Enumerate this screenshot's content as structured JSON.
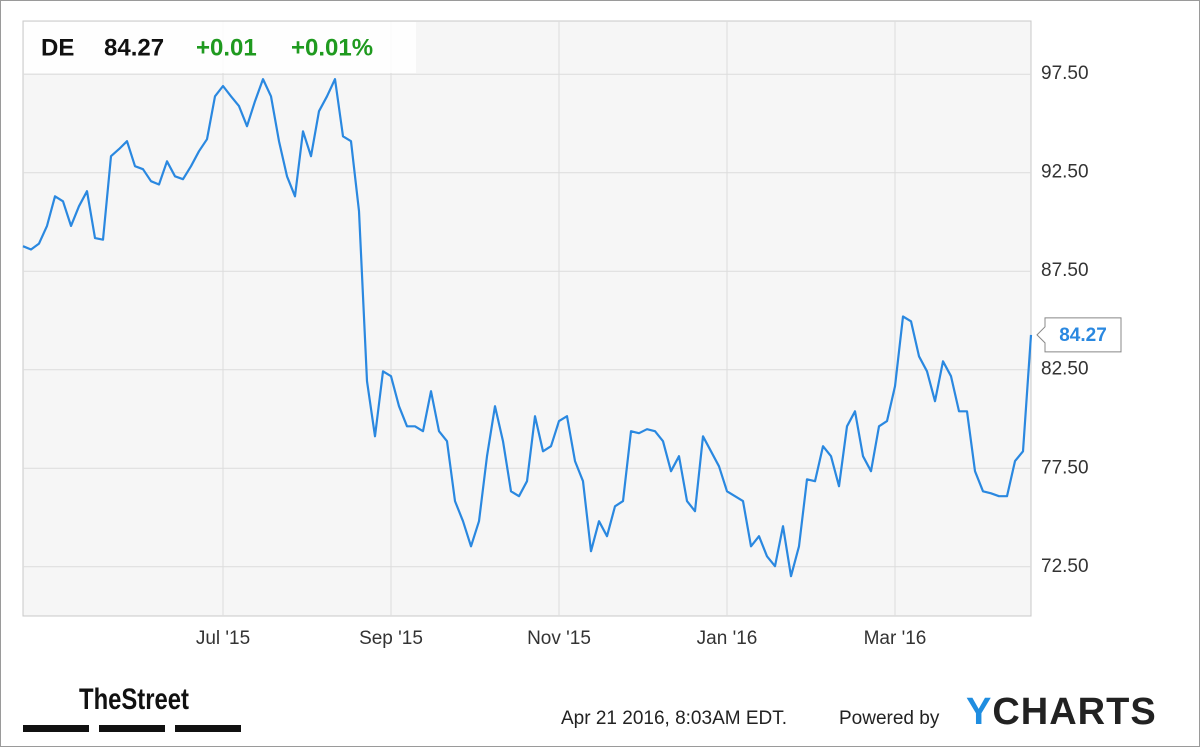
{
  "chart_data": {
    "type": "line",
    "header": {
      "ticker": "DE",
      "change": "+0.01",
      "change_percent": "+0.01%"
    },
    "categories": [
      null,
      null,
      null,
      null,
      null,
      null,
      null,
      null,
      null,
      null,
      null,
      null,
      null,
      null,
      null,
      null,
      null,
      null,
      null,
      null,
      null,
      null,
      null,
      null,
      null,
      "Jul '15",
      null,
      null,
      null,
      null,
      null,
      null,
      null,
      null,
      null,
      null,
      null,
      null,
      null,
      null,
      null,
      null,
      null,
      null,
      null,
      null,
      "Sep '15",
      null,
      null,
      null,
      null,
      null,
      null,
      null,
      null,
      null,
      null,
      null,
      null,
      null,
      null,
      null,
      null,
      null,
      null,
      null,
      null,
      "Nov '15",
      null,
      null,
      null,
      null,
      null,
      null,
      null,
      null,
      null,
      null,
      null,
      null,
      null,
      null,
      null,
      null,
      null,
      null,
      null,
      null,
      "Jan '16",
      null,
      null,
      null,
      null,
      null,
      null,
      null,
      null,
      null,
      null,
      null,
      null,
      null,
      null,
      null,
      null,
      null,
      null,
      null,
      null,
      "Mar '16",
      null,
      null,
      null,
      null,
      null,
      null,
      null,
      null,
      null,
      null,
      null,
      null,
      null,
      null,
      null,
      null,
      null
    ],
    "values": [
      88.77,
      88.6,
      88.9,
      89.8,
      91.3,
      91.05,
      89.8,
      90.8,
      91.56,
      89.18,
      89.1,
      93.34,
      93.7,
      94.1,
      92.83,
      92.68,
      92.07,
      91.9,
      93.08,
      92.32,
      92.17,
      92.83,
      93.59,
      94.2,
      96.38,
      96.9,
      96.38,
      95.88,
      94.86,
      96.13,
      97.25,
      96.38,
      94.1,
      92.32,
      91.3,
      94.6,
      93.34,
      95.62,
      96.38,
      97.25,
      94.35,
      94.1,
      90.55,
      81.92,
      79.12,
      82.42,
      82.17,
      80.65,
      79.63,
      79.63,
      79.38,
      81.41,
      79.38,
      78.87,
      75.83,
      74.81,
      73.54,
      74.81,
      78.11,
      80.65,
      78.87,
      76.33,
      76.08,
      76.84,
      80.14,
      78.36,
      78.62,
      79.89,
      80.14,
      77.86,
      76.84,
      73.29,
      74.81,
      74.05,
      75.57,
      75.83,
      79.38,
      79.28,
      79.48,
      79.38,
      78.87,
      77.35,
      78.11,
      75.83,
      75.32,
      79.12,
      78.36,
      77.6,
      76.33,
      76.08,
      75.83,
      73.54,
      74.05,
      73.03,
      72.53,
      74.56,
      72.02,
      73.54,
      76.94,
      76.84,
      78.62,
      78.11,
      76.59,
      79.63,
      80.39,
      78.11,
      77.35,
      79.63,
      79.89,
      81.66,
      85.2,
      84.96,
      83.18,
      82.42,
      80.9,
      82.93,
      82.17,
      80.39,
      80.39,
      77.35,
      76.33,
      76.23,
      76.08,
      76.08,
      77.86,
      78.36,
      84.27
    ],
    "color": "#2a88e0",
    "ylim": [
      70,
      100.2
    ],
    "yticks": [
      {
        "value": 72.5,
        "label": "72.50"
      },
      {
        "value": 77.5,
        "label": "77.50"
      },
      {
        "value": 82.5,
        "label": "82.50"
      },
      {
        "value": 87.5,
        "label": "87.50"
      },
      {
        "value": 92.5,
        "label": "92.50"
      },
      {
        "value": 97.5,
        "label": "97.50"
      }
    ],
    "grid": true,
    "footer": {
      "brand": "TheStreet",
      "timestamp": "Apr 21 2016, 8:03AM EDT.",
      "powered_by": "Powered by",
      "provider": "YCHARTS"
    }
  }
}
